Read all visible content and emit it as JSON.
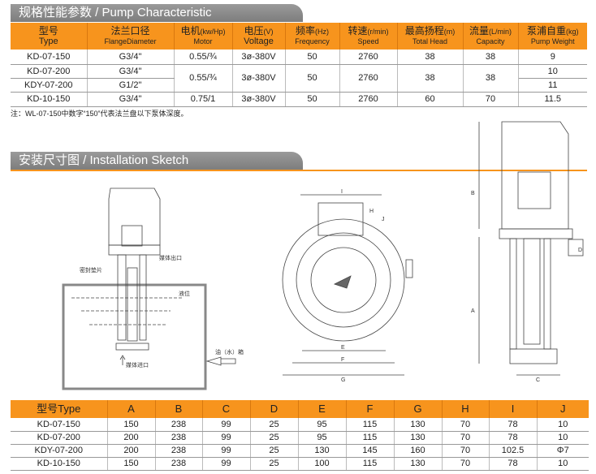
{
  "spec_section": {
    "title": "规格性能参数 / Pump Characteristic"
  },
  "spec_table": {
    "headers": [
      {
        "cn": "型号",
        "unit": "",
        "en": "Type"
      },
      {
        "cn": "法兰口径",
        "unit": "",
        "en": "FlangeDiameter"
      },
      {
        "cn": "电机",
        "unit": "(kw/Hp)",
        "en": "Motor"
      },
      {
        "cn": "电压",
        "unit": "(V)",
        "en": "Voltage"
      },
      {
        "cn": "频率",
        "unit": "(Hz)",
        "en": "Frequency"
      },
      {
        "cn": "转速",
        "unit": "(r/min)",
        "en": "Speed"
      },
      {
        "cn": "最高扬程",
        "unit": "(m)",
        "en": "Total Head"
      },
      {
        "cn": "流量",
        "unit": "(L/min)",
        "en": "Capacity"
      },
      {
        "cn": "泵浦自重",
        "unit": "(kg)",
        "en": "Pump Weight"
      }
    ],
    "rows": [
      {
        "type": "KD-07-150",
        "flange": "G3/4\"",
        "motor": "0.55/¾",
        "voltage": "3ø-380V",
        "freq": "50",
        "speed": "2760",
        "head": "38",
        "capacity": "38",
        "weight": "9"
      },
      {
        "type": "KD-07-200",
        "flange": "G3/4\"",
        "motor": "0.55/¾",
        "voltage": "3ø-380V",
        "freq": "50",
        "speed": "2760",
        "head": "38",
        "capacity": "38",
        "weight": "10"
      },
      {
        "type": "KDY-07-200",
        "flange": "G1/2\"",
        "weight": "11"
      },
      {
        "type": "KD-10-150",
        "flange": "G3/4\"",
        "motor": "0.75/1",
        "voltage": "3ø-380V",
        "freq": "50",
        "speed": "2760",
        "head": "60",
        "capacity": "70",
        "weight": "11.5"
      }
    ]
  },
  "note": "注：WL-07-150中数字“150”代表法兰盘以下泵体深度。",
  "install_section": {
    "title": "安装尺寸图 / Installation Sketch"
  },
  "sketch_labels": {
    "outlet": "媒体出口",
    "gasket": "密封垫片",
    "level": "液位",
    "tank": "油（水）箱",
    "inlet": "媒体进口",
    "dims": [
      "A",
      "B",
      "C",
      "D",
      "E",
      "F",
      "G",
      "H",
      "I",
      "J"
    ]
  },
  "dim_table": {
    "headers": [
      "型号Type",
      "A",
      "B",
      "C",
      "D",
      "E",
      "F",
      "G",
      "H",
      "I",
      "J"
    ],
    "rows": [
      [
        "KD-07-150",
        "150",
        "238",
        "99",
        "25",
        "95",
        "115",
        "130",
        "70",
        "78",
        "10"
      ],
      [
        "KD-07-200",
        "200",
        "238",
        "99",
        "25",
        "95",
        "115",
        "130",
        "70",
        "78",
        "10"
      ],
      [
        "KDY-07-200",
        "200",
        "238",
        "99",
        "25",
        "130",
        "145",
        "160",
        "70",
        "102.5",
        "Φ7"
      ],
      [
        "KD-10-150",
        "150",
        "238",
        "99",
        "25",
        "100",
        "115",
        "130",
        "70",
        "78",
        "10"
      ]
    ]
  },
  "colors": {
    "accent": "#f7941d",
    "section_bar": "#8a8a8a"
  }
}
